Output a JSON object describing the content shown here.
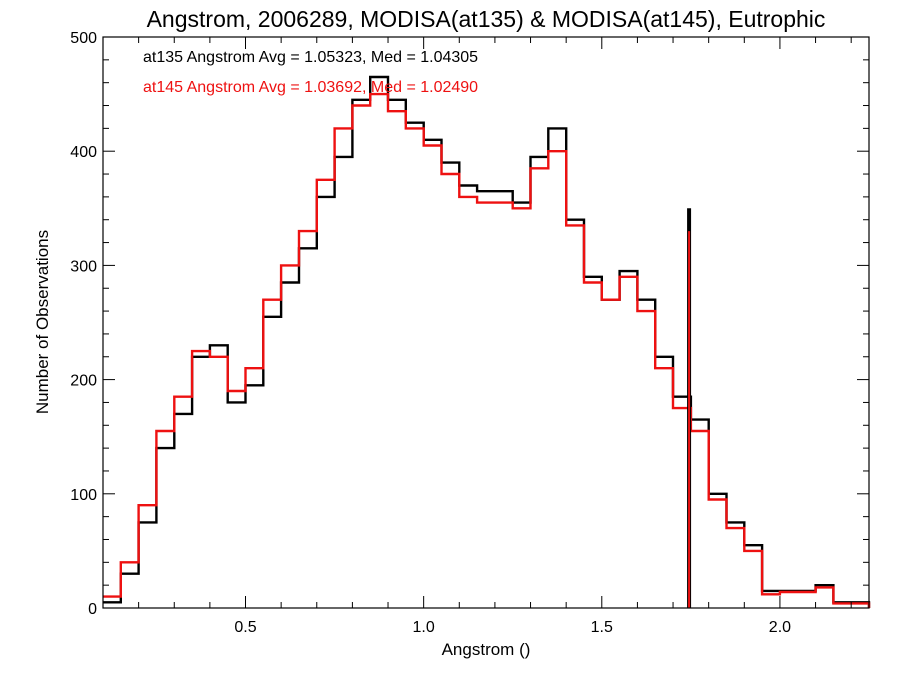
{
  "chart_data": {
    "type": "line",
    "title": "Angstrom, 2006289, MODISA(at135) & MODISA(at145), Eutrophic",
    "xlabel": "Angstrom ()",
    "ylabel": "Number of Observations",
    "xlim": [
      0.1,
      2.25
    ],
    "ylim": [
      0,
      500
    ],
    "xticks": [
      0.5,
      1.0,
      1.5,
      2.0
    ],
    "xtick_labels": [
      "0.5",
      "1.0",
      "1.5",
      "2.0"
    ],
    "yticks": [
      0,
      100,
      200,
      300,
      400,
      500
    ],
    "ytick_labels": [
      "0",
      "100",
      "200",
      "300",
      "400",
      "500"
    ],
    "grid": false,
    "step_histogram": true,
    "legend": [
      {
        "text": "at135 Angstrom Avg = 1.05323, Med = 1.04305",
        "color": "#000000"
      },
      {
        "text": "at145 Angstrom Avg = 1.03692, Med = 1.02490",
        "color": "#ee1111"
      }
    ],
    "series": [
      {
        "name": "at135",
        "color": "#000000",
        "x": [
          0.1,
          0.15,
          0.2,
          0.25,
          0.3,
          0.35,
          0.4,
          0.45,
          0.5,
          0.55,
          0.6,
          0.65,
          0.7,
          0.75,
          0.8,
          0.85,
          0.9,
          0.95,
          1.0,
          1.05,
          1.1,
          1.15,
          1.2,
          1.25,
          1.3,
          1.35,
          1.4,
          1.45,
          1.5,
          1.55,
          1.6,
          1.65,
          1.7,
          1.75,
          1.8,
          1.85,
          1.9,
          1.95,
          2.0,
          2.05,
          2.1,
          2.15,
          2.25
        ],
        "values": [
          5,
          30,
          75,
          140,
          170,
          220,
          230,
          180,
          195,
          255,
          285,
          315,
          360,
          395,
          445,
          465,
          445,
          425,
          410,
          390,
          370,
          365,
          365,
          355,
          395,
          420,
          340,
          290,
          270,
          295,
          270,
          220,
          185,
          165,
          100,
          75,
          55,
          15,
          15,
          15,
          20,
          5,
          0
        ]
      },
      {
        "name": "at145",
        "color": "#ee1111",
        "x": [
          0.1,
          0.15,
          0.2,
          0.25,
          0.3,
          0.35,
          0.4,
          0.45,
          0.5,
          0.55,
          0.6,
          0.65,
          0.7,
          0.75,
          0.8,
          0.85,
          0.9,
          0.95,
          1.0,
          1.05,
          1.1,
          1.15,
          1.2,
          1.25,
          1.3,
          1.35,
          1.4,
          1.45,
          1.5,
          1.55,
          1.6,
          1.65,
          1.7,
          1.75,
          1.8,
          1.85,
          1.9,
          1.95,
          2.0,
          2.05,
          2.1,
          2.15,
          2.25
        ],
        "values": [
          10,
          40,
          90,
          155,
          185,
          225,
          220,
          190,
          210,
          270,
          300,
          330,
          375,
          420,
          440,
          450,
          435,
          420,
          405,
          380,
          360,
          355,
          355,
          350,
          385,
          400,
          335,
          285,
          270,
          290,
          260,
          210,
          175,
          155,
          95,
          70,
          50,
          12,
          14,
          14,
          18,
          4,
          0
        ]
      }
    ],
    "annotations": [
      {
        "series": "at135",
        "x": 1.745,
        "value": 350
      },
      {
        "series": "at145",
        "x": 1.745,
        "value": 330
      }
    ]
  }
}
